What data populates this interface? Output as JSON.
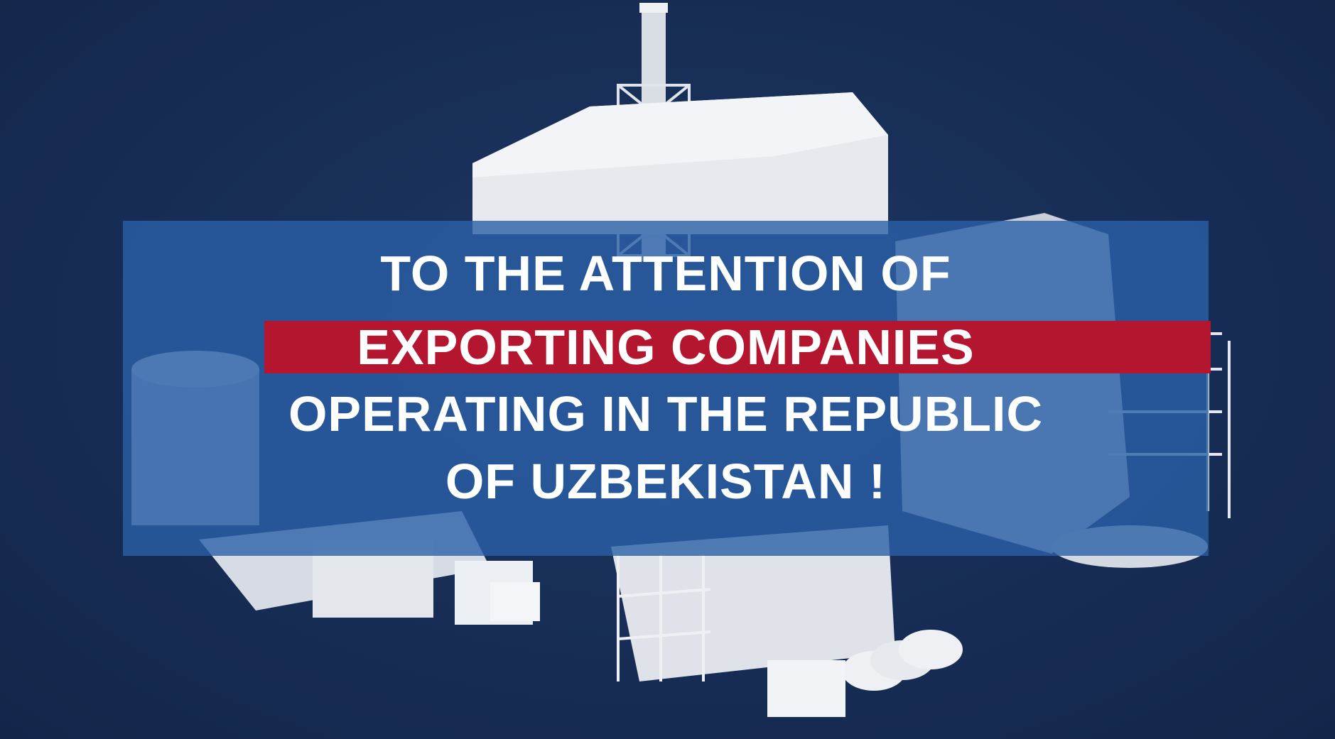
{
  "headline": {
    "line1": "TO THE ATTENTION OF",
    "line2": "EXPORTING COMPANIES",
    "line3": "OPERATING IN THE REPUBLIC",
    "line4": "OF UZBEKISTAN !"
  },
  "colors": {
    "background": "#172d55",
    "banner": "#2a60a8",
    "highlight": "#b5162f",
    "text": "#ffffff",
    "plant_render": "#e8ebf0"
  }
}
